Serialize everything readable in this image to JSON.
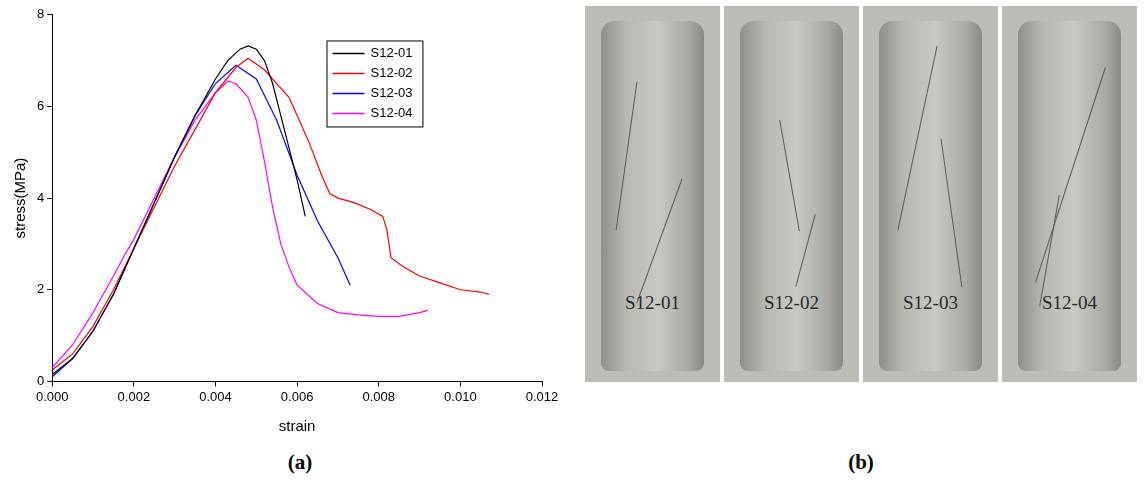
{
  "chart_data": {
    "type": "line",
    "x_label": "strain",
    "y_label": "stress(MPa)",
    "xlim": [
      0,
      0.012
    ],
    "xticks": [
      {
        "value": 0,
        "label": "0.000"
      },
      {
        "value": 0.002,
        "label": "0.002"
      },
      {
        "value": 0.004,
        "label": "0.004"
      },
      {
        "value": 0.006,
        "label": "0.006"
      },
      {
        "value": 0.008,
        "label": "0.008"
      },
      {
        "value": 0.01,
        "label": "0.010"
      },
      {
        "value": 0.012,
        "label": "0.012"
      }
    ],
    "ylim": [
      0,
      8
    ],
    "yticks": [
      0,
      2,
      4,
      6,
      8
    ],
    "grid": false,
    "legend": "upper right",
    "series": [
      {
        "name": "S12-01",
        "color": "#000000",
        "marker": "none",
        "line_style": "solid",
        "x": [
          0,
          0.0005,
          0.001,
          0.0015,
          0.002,
          0.0025,
          0.003,
          0.0035,
          0.004,
          0.0043,
          0.0046,
          0.0048,
          0.005,
          0.0052,
          0.0054,
          0.0056,
          0.0058,
          0.006,
          0.0062
        ],
        "values": [
          0.15,
          0.5,
          1.1,
          1.9,
          2.9,
          3.9,
          4.9,
          5.8,
          6.6,
          7.0,
          7.25,
          7.32,
          7.25,
          7.0,
          6.5,
          5.8,
          5.1,
          4.4,
          3.6
        ]
      },
      {
        "name": "S12-02",
        "color": "#ff0000",
        "marker": "none",
        "line_style": "solid",
        "x": [
          0,
          0.0005,
          0.001,
          0.0015,
          0.002,
          0.0025,
          0.003,
          0.0035,
          0.004,
          0.0045,
          0.0048,
          0.0052,
          0.0055,
          0.0058,
          0.006,
          0.0063,
          0.0066,
          0.0068,
          0.007,
          0.0074,
          0.0078,
          0.0081,
          0.0082,
          0.0083,
          0.0086,
          0.009,
          0.0095,
          0.01,
          0.0105,
          0.0107
        ],
        "values": [
          0.25,
          0.6,
          1.2,
          2.0,
          2.9,
          3.8,
          4.7,
          5.5,
          6.3,
          6.85,
          7.05,
          6.8,
          6.5,
          6.2,
          5.8,
          5.2,
          4.5,
          4.1,
          4.0,
          3.9,
          3.75,
          3.6,
          3.3,
          2.7,
          2.5,
          2.3,
          2.15,
          2.0,
          1.95,
          1.9
        ]
      },
      {
        "name": "S12-03",
        "color": "#0000ff",
        "marker": "none",
        "line_style": "solid",
        "x": [
          0,
          0.0005,
          0.001,
          0.0015,
          0.002,
          0.0025,
          0.003,
          0.0035,
          0.004,
          0.0045,
          0.005,
          0.0055,
          0.006,
          0.0065,
          0.007,
          0.0073
        ],
        "values": [
          0.1,
          0.5,
          1.1,
          1.9,
          2.9,
          3.9,
          4.9,
          5.8,
          6.5,
          6.9,
          6.6,
          5.7,
          4.5,
          3.5,
          2.7,
          2.1
        ]
      },
      {
        "name": "S12-04",
        "color": "#ff00ff",
        "marker": "none",
        "line_style": "solid",
        "x": [
          0,
          0.0005,
          0.001,
          0.0015,
          0.0018,
          0.002,
          0.0025,
          0.003,
          0.0035,
          0.004,
          0.0043,
          0.0045,
          0.0048,
          0.005,
          0.0052,
          0.0054,
          0.0056,
          0.0058,
          0.006,
          0.0065,
          0.007,
          0.0075,
          0.008,
          0.0085,
          0.009,
          0.0092
        ],
        "values": [
          0.3,
          0.8,
          1.5,
          2.3,
          2.8,
          3.1,
          4.0,
          4.9,
          5.7,
          6.3,
          6.55,
          6.5,
          6.2,
          5.7,
          4.8,
          3.8,
          3.0,
          2.5,
          2.1,
          1.7,
          1.5,
          1.45,
          1.42,
          1.42,
          1.5,
          1.55
        ]
      }
    ]
  },
  "panel_labels": [
    "(a)",
    "(b)"
  ],
  "photos": [
    "S12-01",
    "S12-02",
    "S12-03",
    "S12-04"
  ]
}
